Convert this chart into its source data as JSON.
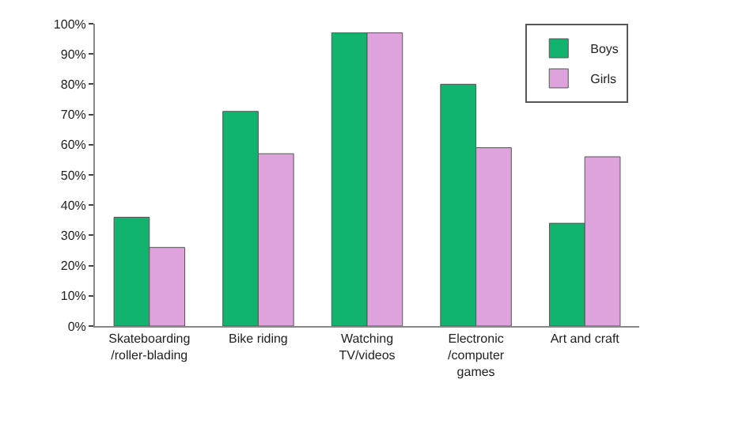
{
  "chart_data": {
    "type": "bar",
    "categories": [
      "Skateboarding\n/roller-blading",
      "Bike riding",
      "Watching\nTV/videos",
      "Electronic\n/computer\ngames",
      "Art and craft"
    ],
    "series": [
      {
        "name": "Boys",
        "color": "#12b36e",
        "values": [
          36,
          71,
          97,
          80,
          34
        ]
      },
      {
        "name": "Girls",
        "color": "#dea3dc",
        "values": [
          26,
          57,
          97,
          59,
          56
        ]
      }
    ],
    "ylim": [
      0,
      100
    ],
    "yticks": [
      {
        "value": 0,
        "label": "0%"
      },
      {
        "value": 10,
        "label": "10%"
      },
      {
        "value": 20,
        "label": "20%"
      },
      {
        "value": 30,
        "label": "30%"
      },
      {
        "value": 40,
        "label": "40%"
      },
      {
        "value": 50,
        "label": "50%"
      },
      {
        "value": 60,
        "label": "60%"
      },
      {
        "value": 70,
        "label": "70%"
      },
      {
        "value": 80,
        "label": "80%"
      },
      {
        "value": 90,
        "label": "90%"
      },
      {
        "value": 100,
        "label": "100%"
      }
    ],
    "grid": false,
    "legend": "top right"
  }
}
